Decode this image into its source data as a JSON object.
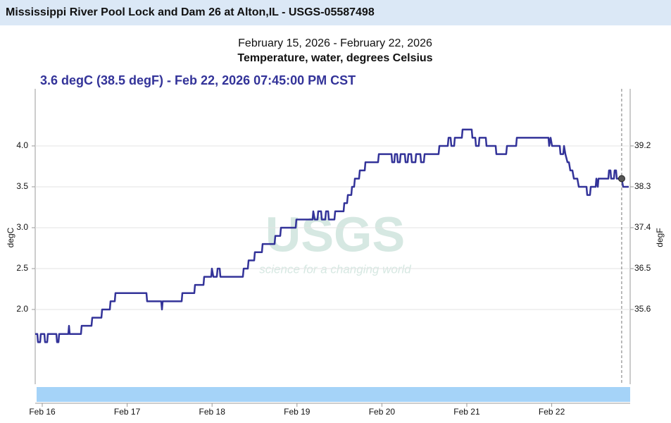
{
  "header": {
    "title": "Mississippi River Pool Lock and Dam 26 at Alton,IL - USGS-05587498"
  },
  "chart_data": {
    "type": "line",
    "subtitle": "February 15, 2026 - February 22, 2026",
    "title": "Temperature, water, degrees Celsius",
    "readout": "3.6 degC (38.5 degF) - Feb 22, 2026 07:45:00 PM CST",
    "ylabel": "degC",
    "y2label": "degF",
    "watermark": {
      "text": "USGS",
      "tagline": "science for a changing world"
    },
    "color": "#333399",
    "x": [
      15.917,
      15.942,
      15.95,
      15.975,
      15.983,
      16.025,
      16.033,
      16.058,
      16.066,
      16.166,
      16.174,
      16.191,
      16.199,
      16.307,
      16.315,
      16.323,
      16.456,
      16.464,
      16.58,
      16.589,
      16.697,
      16.705,
      16.796,
      16.804,
      16.854,
      16.862,
      17.227,
      17.235,
      17.401,
      17.41,
      17.418,
      17.642,
      17.65,
      17.791,
      17.799,
      17.899,
      17.907,
      17.99,
      17.998,
      18.015,
      18.056,
      18.065,
      18.09,
      18.098,
      18.363,
      18.372,
      18.421,
      18.43,
      18.496,
      18.504,
      18.587,
      18.595,
      18.736,
      18.745,
      18.803,
      18.811,
      18.985,
      18.993,
      19.184,
      19.192,
      19.209,
      19.242,
      19.25,
      19.284,
      19.292,
      19.333,
      19.342,
      19.367,
      19.375,
      19.441,
      19.45,
      19.549,
      19.557,
      19.59,
      19.599,
      19.64,
      19.648,
      19.673,
      19.682,
      19.731,
      19.74,
      19.798,
      19.806,
      19.955,
      19.964,
      20.113,
      20.121,
      20.146,
      20.154,
      20.179,
      20.187,
      20.212,
      20.221,
      20.27,
      20.279,
      20.303,
      20.312,
      20.345,
      20.353,
      20.395,
      20.403,
      20.453,
      20.461,
      20.494,
      20.503,
      20.668,
      20.677,
      20.776,
      20.785,
      20.809,
      20.818,
      20.851,
      20.859,
      20.942,
      20.95,
      21.058,
      21.066,
      21.1,
      21.108,
      21.141,
      21.149,
      21.224,
      21.232,
      21.34,
      21.348,
      21.464,
      21.473,
      21.581,
      21.589,
      21.962,
      21.97,
      21.987,
      22.004,
      22.095,
      22.103,
      22.136,
      22.145,
      22.161,
      22.186,
      22.203,
      22.219,
      22.244,
      22.261,
      22.302,
      22.319,
      22.41,
      22.418,
      22.451,
      22.46,
      22.518,
      22.526,
      22.543,
      22.551,
      22.667,
      22.675,
      22.692,
      22.7,
      22.733,
      22.741,
      22.758,
      22.766,
      22.824,
      22.841,
      22.907
    ],
    "values": [
      1.7,
      1.7,
      1.6,
      1.6,
      1.7,
      1.7,
      1.6,
      1.6,
      1.7,
      1.7,
      1.6,
      1.6,
      1.7,
      1.7,
      1.8,
      1.7,
      1.7,
      1.8,
      1.8,
      1.9,
      1.9,
      2.0,
      2.0,
      2.1,
      2.1,
      2.2,
      2.2,
      2.1,
      2.1,
      2.0,
      2.1,
      2.1,
      2.2,
      2.2,
      2.3,
      2.3,
      2.4,
      2.4,
      2.5,
      2.4,
      2.4,
      2.5,
      2.5,
      2.4,
      2.4,
      2.5,
      2.5,
      2.6,
      2.6,
      2.7,
      2.7,
      2.8,
      2.8,
      2.9,
      2.9,
      3.0,
      3.0,
      3.1,
      3.1,
      3.2,
      3.1,
      3.1,
      3.2,
      3.2,
      3.1,
      3.1,
      3.2,
      3.2,
      3.1,
      3.1,
      3.2,
      3.2,
      3.3,
      3.3,
      3.4,
      3.4,
      3.5,
      3.5,
      3.6,
      3.6,
      3.7,
      3.7,
      3.8,
      3.8,
      3.9,
      3.9,
      3.8,
      3.8,
      3.9,
      3.9,
      3.8,
      3.8,
      3.9,
      3.9,
      3.8,
      3.8,
      3.9,
      3.9,
      3.8,
      3.8,
      3.9,
      3.9,
      3.8,
      3.8,
      3.9,
      3.9,
      4.0,
      4.0,
      4.1,
      4.1,
      4.0,
      4.0,
      4.1,
      4.1,
      4.2,
      4.2,
      4.1,
      4.1,
      4.0,
      4.0,
      4.1,
      4.1,
      4.0,
      4.0,
      3.9,
      3.9,
      4.0,
      4.0,
      4.1,
      4.1,
      4.0,
      4.1,
      4.0,
      4.0,
      3.9,
      3.9,
      4.0,
      3.9,
      3.8,
      3.8,
      3.7,
      3.7,
      3.6,
      3.6,
      3.5,
      3.5,
      3.4,
      3.4,
      3.5,
      3.5,
      3.6,
      3.5,
      3.6,
      3.6,
      3.7,
      3.7,
      3.6,
      3.6,
      3.7,
      3.7,
      3.6,
      3.6,
      3.5,
      3.5
    ],
    "marker": {
      "x": 22.824,
      "value": 3.6
    },
    "xlim": [
      15.917,
      22.924
    ],
    "xticks": [
      {
        "value": 16,
        "label": "Feb 16"
      },
      {
        "value": 17,
        "label": "Feb 17"
      },
      {
        "value": 18,
        "label": "Feb 18"
      },
      {
        "value": 19,
        "label": "Feb 19"
      },
      {
        "value": 20,
        "label": "Feb 20"
      },
      {
        "value": 21,
        "label": "Feb 21"
      },
      {
        "value": 22,
        "label": "Feb 22"
      }
    ],
    "ylim": [
      1.086,
      4.698
    ],
    "yticks": [
      {
        "value": 2,
        "label": "2.0"
      },
      {
        "value": 2.5,
        "label": "2.5"
      },
      {
        "value": 3,
        "label": "3.0"
      },
      {
        "value": 3.5,
        "label": "3.5"
      },
      {
        "value": 4,
        "label": "4.0"
      }
    ],
    "y2lim": [
      33.955,
      40.456
    ],
    "y2ticks": [
      35.6,
      36.5,
      37.4,
      38.3,
      39.2
    ],
    "grid": true
  }
}
